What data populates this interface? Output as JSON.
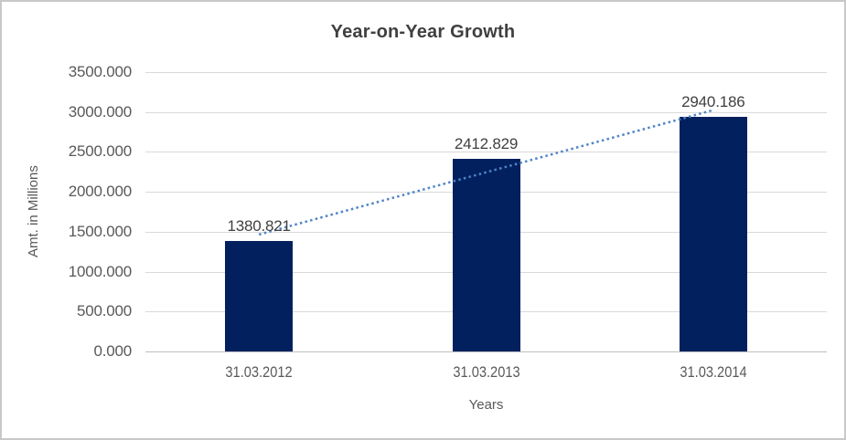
{
  "frame": {
    "border_color": "#c8c8c8",
    "background": "#ffffff"
  },
  "chart_data": {
    "type": "bar",
    "title": "Year-on-Year Growth",
    "categories": [
      "31.03.2012",
      "31.03.2013",
      "31.03.2014"
    ],
    "values": [
      1380.821,
      2412.829,
      2940.186
    ],
    "data_labels": [
      "1380.821",
      "2412.829",
      "2940.186"
    ],
    "xlabel": "Years",
    "ylabel": "Amt. in Millions",
    "ylim": [
      0,
      3500
    ],
    "ytick_step": 500,
    "ytick_labels": [
      "3500.000",
      "3000.000",
      "2500.000",
      "2000.000",
      "1500.000",
      "1000.000",
      "500.000",
      "0.000"
    ],
    "grid": true,
    "legend": "none",
    "trendline": {
      "type": "linear",
      "style": "dotted",
      "spans": "first-to-last-category-center"
    },
    "colors": {
      "bar": "#03205e",
      "trendline": "#4e84c8",
      "gridline": "#d9d9d9",
      "axis_line": "#bfbfbf",
      "title_text": "#3f3f3f",
      "tick_text": "#595959",
      "label_text": "#404040"
    }
  }
}
